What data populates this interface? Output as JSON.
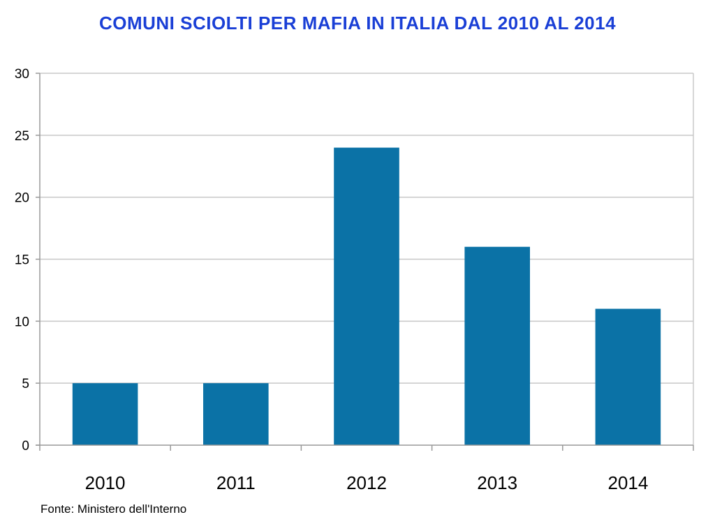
{
  "chart_data": {
    "type": "bar",
    "title": "COMUNI SCIOLTI PER MAFIA IN ITALIA DAL 2010 AL 2014",
    "categories": [
      "2010",
      "2011",
      "2012",
      "2013",
      "2014"
    ],
    "values": [
      5,
      5,
      24,
      16,
      11
    ],
    "ylim": [
      0,
      30
    ],
    "yticks": [
      0,
      5,
      10,
      15,
      20,
      25,
      30
    ],
    "xlabel": "",
    "ylabel": "",
    "grid": true,
    "legend": "none"
  },
  "footer": {
    "source": "Fonte: Ministero dell'Interno"
  },
  "colors": {
    "title": "#1a3fd6",
    "bar": "#0b72a6",
    "grid": "#c8c8c8",
    "axis": "#999999",
    "text": "#000000"
  }
}
